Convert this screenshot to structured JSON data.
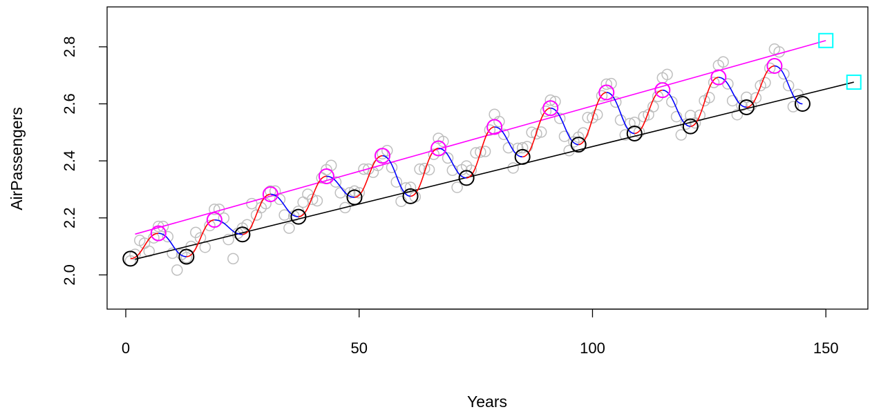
{
  "chart_data": {
    "type": "scatter",
    "xlabel": "Years",
    "ylabel": "AirPassengers",
    "xlim": [
      -4,
      159
    ],
    "ylim": [
      1.88,
      2.94
    ],
    "x_ticks": [
      0,
      50,
      100,
      150
    ],
    "y_ticks": [
      2.0,
      2.2,
      2.4,
      2.6,
      2.8
    ],
    "x_tick_labels": [
      "0",
      "50",
      "100",
      "150"
    ],
    "y_tick_labels": [
      "2.0",
      "2.2",
      "2.4",
      "2.6",
      "2.8"
    ],
    "grid": false,
    "legend": "none",
    "colors": {
      "observations": "#bebebe",
      "peaks": "#ff00ff",
      "troughs": "#000000",
      "rising": "#ff0000",
      "falling": "#0000ff",
      "peak_trend": "#ff00ff",
      "trough_trend": "#000000",
      "forecast": "#00ffff"
    },
    "observations": [
      {
        "x": 1,
        "y": 2.049
      },
      {
        "x": 2,
        "y": 2.072
      },
      {
        "x": 3,
        "y": 2.121
      },
      {
        "x": 4,
        "y": 2.111
      },
      {
        "x": 5,
        "y": 2.083
      },
      {
        "x": 6,
        "y": 2.13
      },
      {
        "x": 7,
        "y": 2.17
      },
      {
        "x": 8,
        "y": 2.17
      },
      {
        "x": 9,
        "y": 2.134
      },
      {
        "x": 10,
        "y": 2.076
      },
      {
        "x": 11,
        "y": 2.017
      },
      {
        "x": 12,
        "y": 2.072
      },
      {
        "x": 13,
        "y": 2.061
      },
      {
        "x": 14,
        "y": 2.1
      },
      {
        "x": 15,
        "y": 2.149
      },
      {
        "x": 16,
        "y": 2.13
      },
      {
        "x": 17,
        "y": 2.097
      },
      {
        "x": 18,
        "y": 2.173
      },
      {
        "x": 19,
        "y": 2.23
      },
      {
        "x": 20,
        "y": 2.23
      },
      {
        "x": 21,
        "y": 2.199
      },
      {
        "x": 22,
        "y": 2.124
      },
      {
        "x": 23,
        "y": 2.057
      },
      {
        "x": 24,
        "y": 2.146
      },
      {
        "x": 25,
        "y": 2.164
      },
      {
        "x": 26,
        "y": 2.176
      },
      {
        "x": 27,
        "y": 2.25
      },
      {
        "x": 28,
        "y": 2.21
      },
      {
        "x": 29,
        "y": 2.236
      },
      {
        "x": 30,
        "y": 2.25
      },
      {
        "x": 31,
        "y": 2.294
      },
      {
        "x": 32,
        "y": 2.294
      },
      {
        "x": 33,
        "y": 2.265
      },
      {
        "x": 34,
        "y": 2.21
      },
      {
        "x": 35,
        "y": 2.164
      },
      {
        "x": 36,
        "y": 2.207
      },
      {
        "x": 37,
        "y": 2.223
      },
      {
        "x": 38,
        "y": 2.255
      },
      {
        "x": 39,
        "y": 2.283
      },
      {
        "x": 40,
        "y": 2.265
      },
      {
        "x": 41,
        "y": 2.26
      },
      {
        "x": 42,
        "y": 2.34
      },
      {
        "x": 43,
        "y": 2.369
      },
      {
        "x": 44,
        "y": 2.384
      },
      {
        "x": 45,
        "y": 2.326
      },
      {
        "x": 46,
        "y": 2.288
      },
      {
        "x": 47,
        "y": 2.236
      },
      {
        "x": 48,
        "y": 2.288
      },
      {
        "x": 49,
        "y": 2.294
      },
      {
        "x": 50,
        "y": 2.288
      },
      {
        "x": 51,
        "y": 2.371
      },
      {
        "x": 52,
        "y": 2.371
      },
      {
        "x": 53,
        "y": 2.36
      },
      {
        "x": 54,
        "y": 2.384
      },
      {
        "x": 55,
        "y": 2.425
      },
      {
        "x": 56,
        "y": 2.436
      },
      {
        "x": 57,
        "y": 2.377
      },
      {
        "x": 58,
        "y": 2.326
      },
      {
        "x": 59,
        "y": 2.258
      },
      {
        "x": 60,
        "y": 2.305
      },
      {
        "x": 61,
        "y": 2.307
      },
      {
        "x": 62,
        "y": 2.274
      },
      {
        "x": 63,
        "y": 2.371
      },
      {
        "x": 64,
        "y": 2.373
      },
      {
        "x": 65,
        "y": 2.369
      },
      {
        "x": 66,
        "y": 2.423
      },
      {
        "x": 67,
        "y": 2.479
      },
      {
        "x": 68,
        "y": 2.468
      },
      {
        "x": 69,
        "y": 2.41
      },
      {
        "x": 70,
        "y": 2.367
      },
      {
        "x": 71,
        "y": 2.307
      },
      {
        "x": 72,
        "y": 2.369
      },
      {
        "x": 73,
        "y": 2.382
      },
      {
        "x": 74,
        "y": 2.367
      },
      {
        "x": 75,
        "y": 2.428
      },
      {
        "x": 76,
        "y": 2.431
      },
      {
        "x": 77,
        "y": 2.433
      },
      {
        "x": 78,
        "y": 2.508
      },
      {
        "x": 79,
        "y": 2.563
      },
      {
        "x": 80,
        "y": 2.538
      },
      {
        "x": 81,
        "y": 2.493
      },
      {
        "x": 82,
        "y": 2.446
      },
      {
        "x": 83,
        "y": 2.375
      },
      {
        "x": 84,
        "y": 2.444
      },
      {
        "x": 85,
        "y": 2.446
      },
      {
        "x": 86,
        "y": 2.45
      },
      {
        "x": 87,
        "y": 2.5
      },
      {
        "x": 88,
        "y": 2.495
      },
      {
        "x": 89,
        "y": 2.501
      },
      {
        "x": 90,
        "y": 2.574
      },
      {
        "x": 91,
        "y": 2.613
      },
      {
        "x": 92,
        "y": 2.608
      },
      {
        "x": 93,
        "y": 2.549
      },
      {
        "x": 94,
        "y": 2.486
      },
      {
        "x": 95,
        "y": 2.436
      },
      {
        "x": 96,
        "y": 2.467
      },
      {
        "x": 97,
        "y": 2.483
      },
      {
        "x": 98,
        "y": 2.498
      },
      {
        "x": 99,
        "y": 2.552
      },
      {
        "x": 100,
        "y": 2.551
      },
      {
        "x": 101,
        "y": 2.562
      },
      {
        "x": 102,
        "y": 2.628
      },
      {
        "x": 103,
        "y": 2.669
      },
      {
        "x": 104,
        "y": 2.671
      },
      {
        "x": 105,
        "y": 2.606
      },
      {
        "x": 106,
        "y": 2.543
      },
      {
        "x": 107,
        "y": 2.491
      },
      {
        "x": 108,
        "y": 2.531
      },
      {
        "x": 109,
        "y": 2.535
      },
      {
        "x": 110,
        "y": 2.501
      },
      {
        "x": 111,
        "y": 2.555
      },
      {
        "x": 112,
        "y": 2.562
      },
      {
        "x": 113,
        "y": 2.59
      },
      {
        "x": 114,
        "y": 2.626
      },
      {
        "x": 115,
        "y": 2.691
      },
      {
        "x": 116,
        "y": 2.703
      },
      {
        "x": 117,
        "y": 2.607
      },
      {
        "x": 118,
        "y": 2.555
      },
      {
        "x": 119,
        "y": 2.491
      },
      {
        "x": 120,
        "y": 2.529
      },
      {
        "x": 121,
        "y": 2.559
      },
      {
        "x": 122,
        "y": 2.533
      },
      {
        "x": 123,
        "y": 2.56
      },
      {
        "x": 124,
        "y": 2.611
      },
      {
        "x": 125,
        "y": 2.622
      },
      {
        "x": 126,
        "y": 2.675
      },
      {
        "x": 127,
        "y": 2.735
      },
      {
        "x": 128,
        "y": 2.747
      },
      {
        "x": 129,
        "y": 2.67
      },
      {
        "x": 130,
        "y": 2.611
      },
      {
        "x": 131,
        "y": 2.562
      },
      {
        "x": 132,
        "y": 2.594
      },
      {
        "x": 133,
        "y": 2.623
      },
      {
        "x": 134,
        "y": 2.594
      },
      {
        "x": 135,
        "y": 2.621
      },
      {
        "x": 136,
        "y": 2.664
      },
      {
        "x": 137,
        "y": 2.674
      },
      {
        "x": 138,
        "y": 2.725
      },
      {
        "x": 139,
        "y": 2.792
      },
      {
        "x": 140,
        "y": 2.782
      },
      {
        "x": 141,
        "y": 2.705
      },
      {
        "x": 142,
        "y": 2.664
      },
      {
        "x": 143,
        "y": 2.59
      },
      {
        "x": 144,
        "y": 2.633
      }
    ],
    "peaks": [
      {
        "x": 7,
        "y": 2.146
      },
      {
        "x": 19,
        "y": 2.193
      },
      {
        "x": 31,
        "y": 2.283
      },
      {
        "x": 43,
        "y": 2.346
      },
      {
        "x": 55,
        "y": 2.418
      },
      {
        "x": 67,
        "y": 2.444
      },
      {
        "x": 79,
        "y": 2.519
      },
      {
        "x": 91,
        "y": 2.585
      },
      {
        "x": 103,
        "y": 2.64
      },
      {
        "x": 115,
        "y": 2.648
      },
      {
        "x": 127,
        "y": 2.693
      },
      {
        "x": 139,
        "y": 2.733
      }
    ],
    "troughs": [
      {
        "x": 1,
        "y": 2.057
      },
      {
        "x": 13,
        "y": 2.064
      },
      {
        "x": 25,
        "y": 2.142
      },
      {
        "x": 37,
        "y": 2.204
      },
      {
        "x": 49,
        "y": 2.272
      },
      {
        "x": 61,
        "y": 2.276
      },
      {
        "x": 73,
        "y": 2.34
      },
      {
        "x": 85,
        "y": 2.414
      },
      {
        "x": 97,
        "y": 2.457
      },
      {
        "x": 109,
        "y": 2.496
      },
      {
        "x": 121,
        "y": 2.521
      },
      {
        "x": 133,
        "y": 2.588
      },
      {
        "x": 145,
        "y": 2.6
      }
    ],
    "peak_trend": {
      "x": [
        2,
        150
      ],
      "y": [
        2.143,
        2.822
      ]
    },
    "trough_trend": {
      "x": [
        2,
        156
      ],
      "y": [
        2.055,
        2.676
      ]
    },
    "forecast_points": [
      {
        "x": 150,
        "y": 2.822
      },
      {
        "x": 156,
        "y": 2.676
      }
    ]
  }
}
